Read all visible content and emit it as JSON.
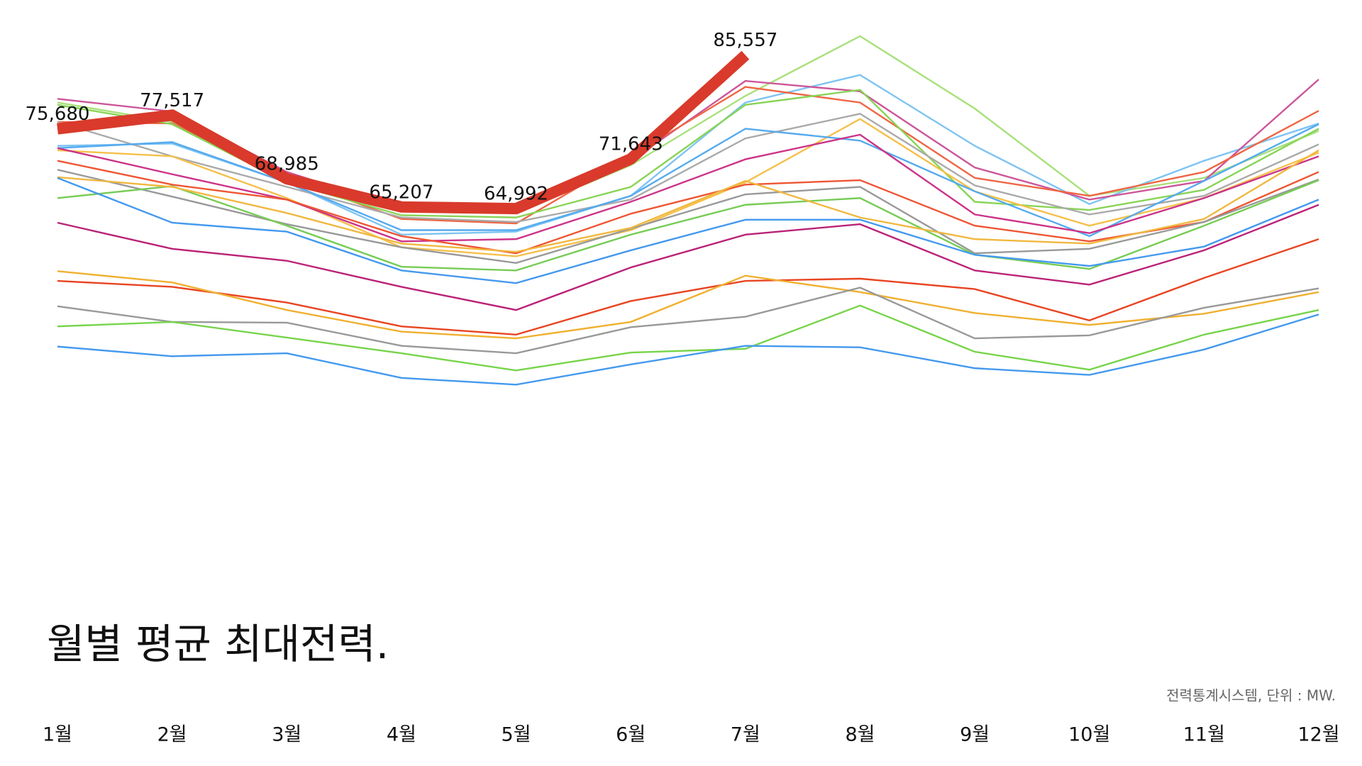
{
  "chart_data": {
    "type": "line",
    "title": "월별 평균 최대전력.",
    "source": "전력통계시스템, 단위 : MW.",
    "categories": [
      "1월",
      "2월",
      "3월",
      "4월",
      "5월",
      "6월",
      "7월",
      "8월",
      "9월",
      "10월",
      "11월",
      "12월"
    ],
    "ylim": [
      40000,
      90000
    ],
    "series": [
      {
        "color": "#a8e07a",
        "values": [
          79200,
          76600,
          69100,
          64600,
          64400,
          70800,
          80100,
          88100,
          78400,
          66700,
          69100,
          75400
        ]
      },
      {
        "color": "#7ec4f2",
        "values": [
          73400,
          73700,
          68500,
          61500,
          61900,
          66700,
          79200,
          82900,
          73400,
          65600,
          71400,
          76400
        ]
      },
      {
        "color": "#cc5599",
        "values": [
          79700,
          78000,
          69900,
          65000,
          65200,
          71400,
          82100,
          80700,
          70500,
          66200,
          68700,
          82300
        ]
      },
      {
        "color": "#ee6644",
        "values": [
          76600,
          76400,
          69100,
          63600,
          63000,
          72000,
          81300,
          79200,
          69100,
          66700,
          69900,
          78100
        ]
      },
      {
        "color": "#88d455",
        "values": [
          78900,
          76300,
          68500,
          64100,
          63800,
          67900,
          78900,
          80900,
          65900,
          64800,
          67500,
          75700
        ]
      },
      {
        "color": "#aaaaaa",
        "values": [
          76600,
          72000,
          67900,
          63800,
          63200,
          66200,
          74400,
          77700,
          68100,
          64200,
          66700,
          73600
        ]
      },
      {
        "color": "#f5c04a",
        "values": [
          72800,
          72000,
          66400,
          59800,
          58600,
          62100,
          68500,
          77000,
          67300,
          62700,
          66400,
          72500
        ]
      },
      {
        "color": "#55aaee",
        "values": [
          73100,
          73900,
          68500,
          62100,
          62100,
          66700,
          75700,
          74100,
          67300,
          61300,
          68700,
          76300
        ]
      },
      {
        "color": "#cc3388",
        "values": [
          73100,
          69600,
          66200,
          60600,
          60900,
          65900,
          71600,
          74900,
          64200,
          61700,
          66400,
          72000
        ]
      },
      {
        "color": "#ee5533",
        "values": [
          71400,
          68200,
          66200,
          61300,
          59000,
          64300,
          68200,
          68800,
          62700,
          60600,
          63200,
          69900
        ]
      },
      {
        "color": "#999999",
        "values": [
          70200,
          66600,
          62900,
          59800,
          57700,
          62300,
          66900,
          67900,
          59000,
          59600,
          63200,
          68900
        ]
      },
      {
        "color": "#77cc55",
        "values": [
          66400,
          68000,
          62700,
          57200,
          56700,
          61500,
          65500,
          66400,
          58800,
          56900,
          62700,
          68800
        ]
      },
      {
        "color": "#f0b840",
        "values": [
          69200,
          67900,
          64400,
          60300,
          59200,
          62400,
          68700,
          63800,
          60900,
          60300,
          63600,
          72800
        ]
      },
      {
        "color": "#4499ee",
        "values": [
          69100,
          63100,
          61900,
          56700,
          55000,
          59400,
          63500,
          63500,
          58800,
          57300,
          59900,
          66200
        ]
      },
      {
        "color": "#bb2277",
        "values": [
          63100,
          59600,
          58000,
          54500,
          51400,
          57100,
          61500,
          62900,
          56700,
          54800,
          59400,
          65500
        ]
      },
      {
        "color": "#e84422",
        "values": [
          55300,
          54500,
          52400,
          49200,
          48100,
          52600,
          55300,
          55600,
          54200,
          50000,
          55700,
          60900
        ]
      },
      {
        "color": "#f0b030",
        "values": [
          56600,
          55100,
          51400,
          48500,
          47600,
          49800,
          56000,
          53800,
          51000,
          49400,
          50900,
          53800
        ]
      },
      {
        "color": "#999999",
        "values": [
          51900,
          49800,
          49700,
          46600,
          45600,
          49100,
          50500,
          54400,
          47600,
          48000,
          51700,
          54300
        ]
      },
      {
        "color": "#77d44a",
        "values": [
          49200,
          49800,
          47700,
          45600,
          43300,
          45700,
          46200,
          52000,
          45800,
          43400,
          48100,
          51400
        ]
      },
      {
        "color": "#4499ee",
        "values": [
          46500,
          45200,
          45600,
          42300,
          41400,
          44100,
          46600,
          46400,
          43600,
          42700,
          46100,
          50800
        ]
      },
      {
        "color": "#d93a2b",
        "highlight": true,
        "values": [
          75680,
          77517,
          68985,
          65207,
          64992,
          71643,
          85557,
          null,
          null,
          null,
          null,
          null
        ],
        "value_labels": [
          "75,680",
          "77,517",
          "68,985",
          "65,207",
          "64,992",
          "71,643",
          "85,557",
          null,
          null,
          null,
          null,
          null
        ]
      }
    ]
  }
}
